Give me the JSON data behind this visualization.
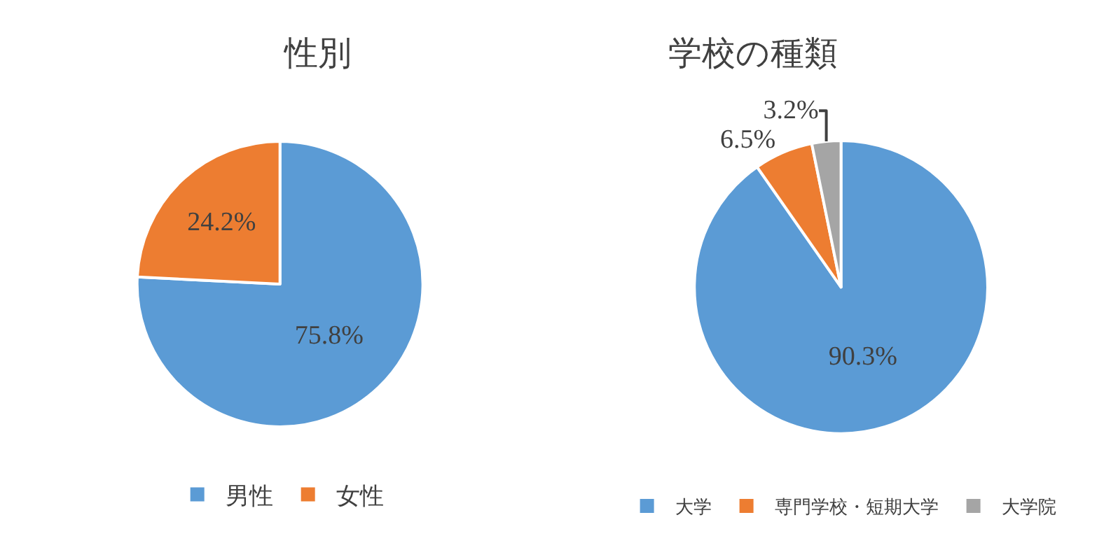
{
  "chart_data": [
    {
      "type": "pie",
      "title": "性別",
      "categories": [
        "男性",
        "女性"
      ],
      "values": [
        75.8,
        24.2
      ],
      "colors": [
        "#5b9bd5",
        "#ed7d31"
      ],
      "value_labels": [
        "75.8%",
        "24.2%"
      ],
      "legend": "bottom"
    },
    {
      "type": "pie",
      "title": "学校の種類",
      "categories": [
        "大学",
        "専門学校・短期大学",
        "大学院"
      ],
      "values": [
        90.3,
        6.5,
        3.2
      ],
      "colors": [
        "#5b9bd5",
        "#ed7d31",
        "#a5a5a5"
      ],
      "value_labels": [
        "90.3%",
        "6.5%",
        "3.2%"
      ],
      "legend": "bottom"
    }
  ]
}
